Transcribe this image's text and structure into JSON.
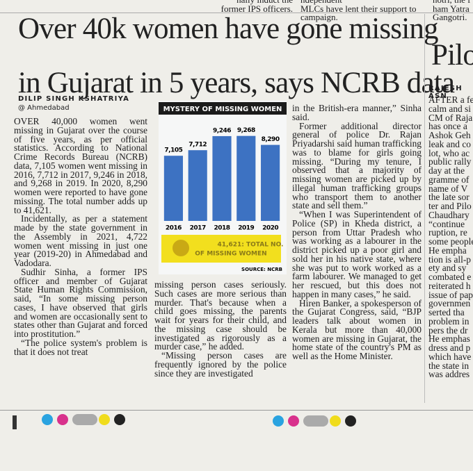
{
  "top_snippets": [
    {
      "lines": [
        "nally induct the",
        "former IPS officers."
      ]
    },
    {
      "lines": [
        "ndependent",
        "MLCs have lent their support to",
        "campaign."
      ]
    },
    {
      "lines": [
        "notri, the f",
        "ham Yatra",
        "Gangotri."
      ]
    }
  ],
  "headline": [
    "Over 40k women have gone missing",
    "in Gujarat in 5 years, says NCRB data"
  ],
  "byline": {
    "author": "DILIP SINGH KSHATRIYA",
    "location": "@ Ahmedabad"
  },
  "columns": [
    {
      "paragraphs": [
        "OVER 40,000 women went missing in Gujarat over the course of five years, as per official statistics. According to National Crime Records Bureau (NCRB) data, 7,105 women went missing in 2016, 7,712 in 2017, 9,246 in 2018, and 9,268 in 2019. In 2020, 8,290 women were reported to have gone missing. The total number adds up to 41,621.",
        "Incidentally, as per a statement made by the state government in the Assembly in 2021, 4,722 women went missing in just one year (2019-20) in Ahmedabad and Vadodara.",
        "Sudhir Sinha, a former IPS officer and member of Gujarat State Human Rights Commission, said, “In some missing person cases, I have observed that girls and women are occasionally sent to states other than Gujarat and forced into prostitution.”",
        "“The police system's problem is that it does not treat"
      ]
    },
    {
      "paragraphs": [
        "missing person cases seriously. Such cases are more serious than murder. That's because when a child goes missing, the parents wait for years for their child, and the missing case should be investigated as rigorously as a murder case,” he added.",
        "“Missing person cases are frequently ignored by the police since they are investigated"
      ]
    },
    {
      "paragraphs": [
        "in the British-era manner,” Sinha said.",
        "Former additional director general of police Dr. Rajan Priyadarshi said human trafficking was to blame for girls going missing. “During my tenure, I observed that a majority of missing women are picked up by illegal human trafficking groups who transport them to another state and sell them.”",
        "“When I was Superintendent of Police (SP) in Kheda district, a person from Uttar Pradesh who was working as a labourer in the district picked up a poor girl and sold her in his native state, where she was put to work worked as a farm labourer. We managed to get her rescued, but this does not happen in many cases,” he said.",
        "Hiren Banker, a spokesperson of the Gujarat Congress, said, “BJP leaders talk about women in Kerala but more than 40,000 women are missing in Gujarat, the home state of the country's PM as well as the Home Minister."
      ]
    }
  ],
  "side_article": {
    "headline": "Pilo",
    "byline": "RAJESH ASN",
    "lines": [
      "AFTER a fe",
      "calm and si",
      "CM of Raja",
      "has once a",
      "Ashok Geh",
      "leak and co",
      "lot, who ac",
      "public rally",
      "day at the",
      "gramme of",
      "name of V",
      "the late sor",
      "ter and Pilo",
      "Chaudhary",
      "“continue",
      "ruption, re",
      "some people",
      "He empha",
      "tion is all-p",
      "ety and sy",
      "combated e",
      "reiterated h",
      "issue of pap",
      "governmen",
      "serted tha",
      "problem in",
      "pers the dr",
      "He emphas",
      "dress and p",
      "which have",
      "the state in",
      "was addres"
    ]
  },
  "chart_data": {
    "type": "bar",
    "title": "MYSTERY OF MISSING WOMEN",
    "categories": [
      "2016",
      "2017",
      "2018",
      "2019",
      "2020"
    ],
    "values": [
      7105,
      7712,
      9246,
      9268,
      8290
    ],
    "value_labels": [
      "7,105",
      "7,712",
      "9,246",
      "9,268",
      "8,290"
    ],
    "color": "#3d72c2",
    "ylim": [
      0,
      10000
    ],
    "annotation": [
      "41,621: TOTAL NO.",
      "OF MISSING WOMEN"
    ],
    "source": "SOURCE: NCRB"
  }
}
